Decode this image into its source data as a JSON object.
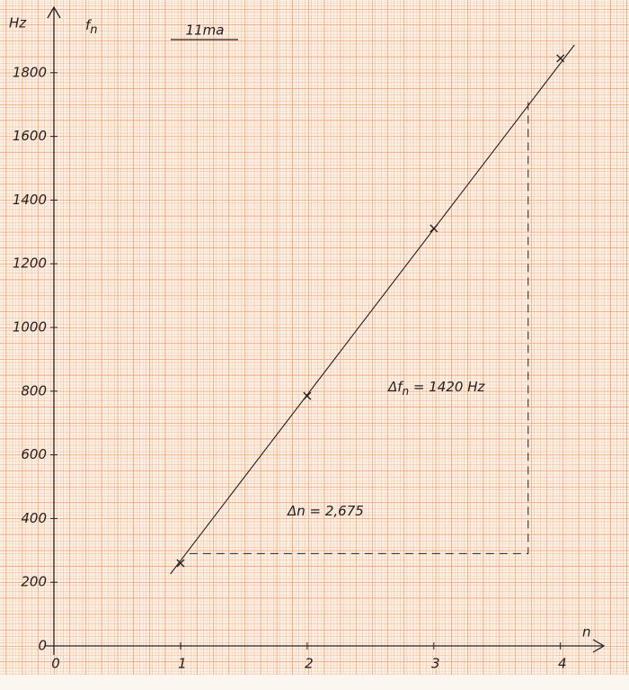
{
  "chart_data": {
    "type": "scatter",
    "title": "11ma",
    "y_label": [
      "f",
      "n"
    ],
    "y_unit": "Hz",
    "x_label": "n",
    "x": [
      1,
      2,
      3,
      4
    ],
    "series": [
      {
        "color": "#222222",
        "values": [
          260,
          785,
          1311,
          1845
        ]
      }
    ],
    "fit": {
      "x": [
        0.92,
        4.11
      ],
      "y": [
        226,
        1887
      ]
    },
    "guides": {
      "x": [
        1.07,
        3.745,
        3.745
      ],
      "y": [
        290,
        290,
        1710
      ]
    },
    "annotations": [
      [
        "Δf",
        "n",
        " = 1420 Hz"
      ],
      [
        "Δn = 2,675"
      ]
    ],
    "xlim": [
      0,
      4.3
    ],
    "ylim": [
      0,
      2000
    ],
    "xticks": [
      0,
      1,
      2,
      3,
      4
    ],
    "yticks": [
      0,
      200,
      400,
      600,
      800,
      1000,
      1200,
      1400,
      1600,
      1800
    ],
    "grid": true
  }
}
